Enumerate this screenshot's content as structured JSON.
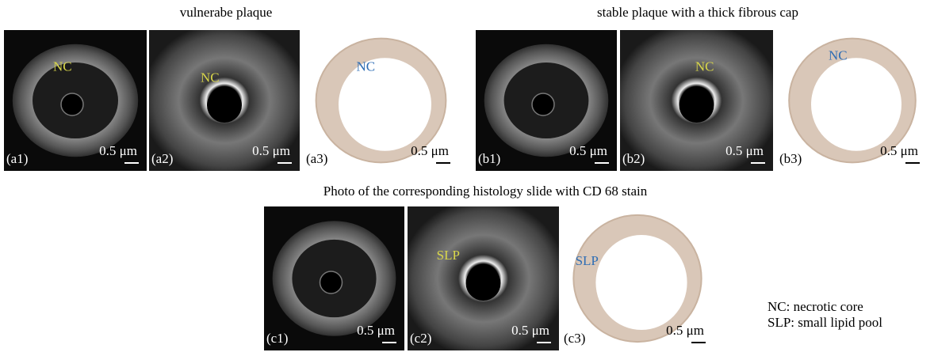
{
  "titles": [
    "vulnerabe plaque",
    "stable plaque with a thick fibrous cap",
    "Photo of the corresponding histology slide with CD 68 stain"
  ],
  "panels": [
    {
      "label": "(a1)",
      "annotation": "NC",
      "scale": "0.5 μm"
    },
    {
      "label": "(a2)",
      "annotation": "NC",
      "scale": "0.5 μm"
    },
    {
      "label": "(a3)",
      "annotation": "NC",
      "scale": "0.5 μm"
    },
    {
      "label": "(b1)",
      "annotation": null,
      "scale": "0.5 μm"
    },
    {
      "label": "(b2)",
      "annotation": "NC",
      "scale": "0.5 μm"
    },
    {
      "label": "(b3)",
      "annotation": "NC",
      "scale": "0.5 μm"
    },
    {
      "label": "(c1)",
      "annotation": null,
      "scale": "0.5 μm"
    },
    {
      "label": "(c2)",
      "annotation": "SLP",
      "scale": "0.5 μm"
    },
    {
      "label": "(c3)",
      "annotation": "SLP",
      "scale": "0.5 μm"
    }
  ],
  "legend": [
    "NC: necrotic core",
    "SLP: small lipid pool"
  ]
}
